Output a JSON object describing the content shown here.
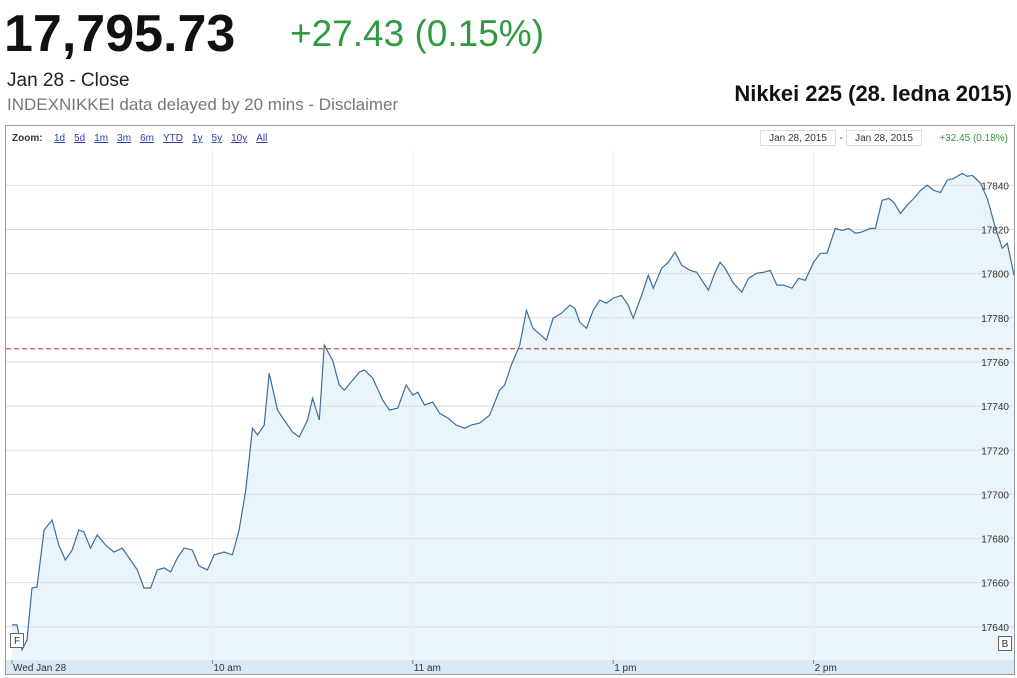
{
  "header": {
    "price": "17,795.73",
    "change": "+27.43 (0.15%)",
    "status": "Jan 28 - Close",
    "source": "INDEXNIKKEI data delayed by 20 mins - Disclaimer"
  },
  "zoom": {
    "label": "Zoom:",
    "links": [
      "1d",
      "5d",
      "1m",
      "3m",
      "6m",
      "YTD",
      "1y",
      "5y",
      "10y",
      "All"
    ],
    "from": "Jan 28, 2015",
    "separator": "-",
    "to": "Jan 28, 2015",
    "range_change": "+32.45 (0.18%)"
  },
  "chart_data": {
    "type": "area",
    "title": "Nikkei 225 (28. ledna 2015)",
    "x": [
      0,
      1.5,
      3,
      4.5,
      6,
      7.5,
      9.6,
      12,
      14,
      16,
      18,
      20,
      21.5,
      23.5,
      25.5,
      28,
      30.5,
      33,
      35.5,
      37.5,
      39.5,
      41.5,
      43.5,
      45.5,
      47.5,
      49.5,
      51.5,
      54,
      56,
      58.5,
      60.5,
      63.5,
      66,
      68,
      70,
      72,
      73.5,
      75.5,
      77,
      79.5,
      81.5,
      84,
      86,
      88.5,
      90,
      92,
      93.5,
      96,
      98,
      99.5,
      102,
      104,
      105.5,
      108,
      111,
      113,
      115.5,
      118,
      120,
      121.5,
      123.5,
      126,
      128,
      130.5,
      133,
      135.5,
      137.5,
      140,
      143,
      146,
      147.5,
      149.5,
      152,
      154,
      156,
      160,
      162,
      164.5,
      167,
      168.5,
      170,
      172,
      174,
      176,
      178,
      180,
      182.5,
      184.5,
      186,
      188.5,
      190.5,
      192,
      194.5,
      196.5,
      198.5,
      200.5,
      203,
      205,
      208.5,
      210.5,
      212,
      213.5,
      216,
      218.5,
      220.5,
      223,
      225,
      227,
      229,
      231,
      233.5,
      235.5,
      237.5,
      240,
      242,
      244,
      246.5,
      248.5,
      250.5,
      252.5,
      254,
      257,
      258.5,
      260.5,
      262.5,
      264,
      266,
      268,
      270,
      272,
      274,
      276,
      278,
      280,
      282,
      284.5,
      286,
      287.5,
      290,
      292,
      294.5,
      296.5,
      298,
      300
    ],
    "values": [
      17640.9,
      17640.9,
      17629.6,
      17634.1,
      17657.6,
      17658.1,
      17683.9,
      17688.4,
      17677.1,
      17670.3,
      17674.8,
      17683.9,
      17683.0,
      17675.7,
      17681.6,
      17677.1,
      17673.9,
      17675.7,
      17670.3,
      17665.8,
      17657.6,
      17657.6,
      17665.8,
      17666.7,
      17664.9,
      17671.2,
      17675.7,
      17674.8,
      17667.6,
      17665.8,
      17672.6,
      17673.9,
      17672.6,
      17683.9,
      17702.0,
      17730.0,
      17726.9,
      17731.4,
      17754.9,
      17738.2,
      17733.7,
      17728.2,
      17726.0,
      17733.7,
      17743.6,
      17733.7,
      17767.6,
      17760.8,
      17749.5,
      17747.2,
      17751.8,
      17755.4,
      17756.3,
      17752.7,
      17742.7,
      17738.2,
      17739.1,
      17749.5,
      17745.0,
      17746.3,
      17740.5,
      17741.8,
      17736.8,
      17734.6,
      17731.4,
      17730.0,
      17731.4,
      17732.3,
      17735.9,
      17747.2,
      17749.5,
      17758.6,
      17767.6,
      17783.4,
      17775.3,
      17769.9,
      17779.8,
      17782.1,
      17785.7,
      17784.3,
      17778.0,
      17775.3,
      17783.4,
      17788.0,
      17786.6,
      17788.9,
      17790.2,
      17785.7,
      17779.8,
      17790.2,
      17799.3,
      17793.4,
      17802.4,
      17805.2,
      17809.7,
      17803.8,
      17801.5,
      17800.6,
      17792.5,
      17800.6,
      17805.2,
      17802.4,
      17795.7,
      17791.6,
      17797.9,
      17800.2,
      17800.6,
      17801.5,
      17794.8,
      17794.8,
      17793.4,
      17797.9,
      17797.0,
      17805.2,
      17809.2,
      17809.2,
      17820.5,
      17819.6,
      17820.5,
      17818.3,
      17818.7,
      17820.5,
      17820.5,
      17833.2,
      17834.1,
      17832.3,
      17827.3,
      17831.0,
      17834.1,
      17837.7,
      17840.0,
      17837.7,
      17836.8,
      17842.3,
      17843.2,
      17845.4,
      17844.1,
      17844.5,
      17840.9,
      17834.1,
      17820.5,
      17811.5,
      17813.8,
      17799.3
    ],
    "color": "#3b6f9c",
    "fill_color": "#e9f4fb",
    "reference_line": 17766,
    "xlim": [
      0,
      300
    ],
    "xticks": [
      {
        "value": 0,
        "label": "Wed Jan 28"
      },
      {
        "value": 60,
        "label": "10 am"
      },
      {
        "value": 120,
        "label": "11 am"
      },
      {
        "value": 180,
        "label": "1 pm"
      },
      {
        "value": 240,
        "label": "2 pm"
      }
    ],
    "ylim": [
      17625,
      17856
    ],
    "yticks": [
      17640,
      17660,
      17680,
      17700,
      17720,
      17740,
      17760,
      17780,
      17800,
      17820,
      17840
    ],
    "grid": true,
    "flags": [
      "F",
      "B"
    ]
  }
}
